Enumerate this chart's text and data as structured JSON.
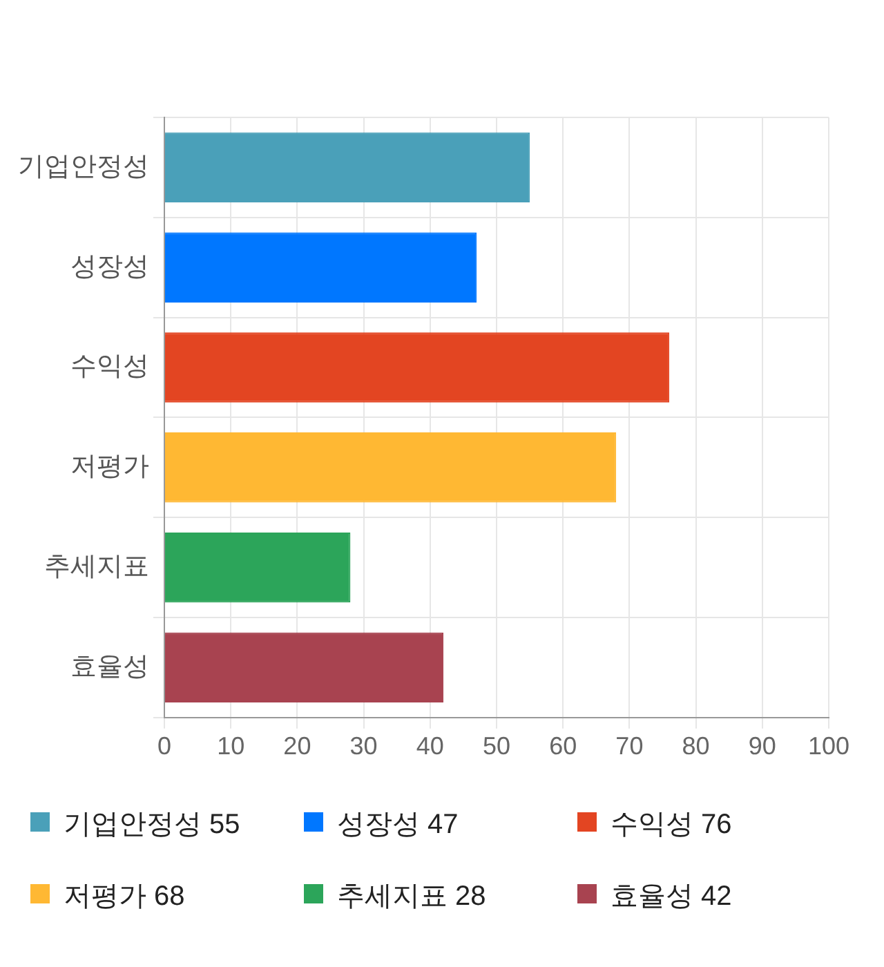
{
  "chart_data": {
    "type": "bar",
    "orientation": "horizontal",
    "categories": [
      "기업안정성",
      "성장성",
      "수익성",
      "저평가",
      "추세지표",
      "효율성"
    ],
    "values": [
      55,
      47,
      76,
      68,
      28,
      42
    ],
    "value_labels": [
      "55",
      "47",
      "76",
      "68",
      "28",
      "42"
    ],
    "colors": [
      "#4aa0b9",
      "#0077ff",
      "#e34522",
      "#ffb833",
      "#2ca55a",
      "#a84350"
    ],
    "xlim": [
      0,
      100
    ],
    "xticks": [
      0,
      10,
      20,
      30,
      40,
      50,
      60,
      70,
      80,
      90,
      100
    ],
    "grid": true
  }
}
